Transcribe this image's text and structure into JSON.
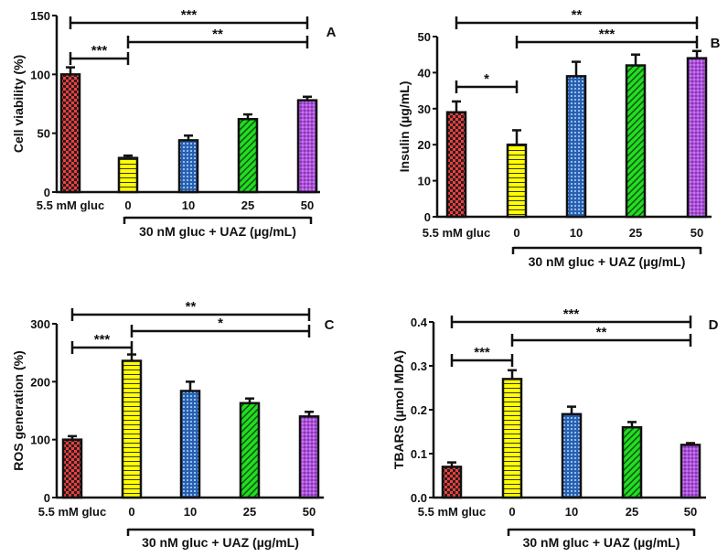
{
  "chart_data": [
    {
      "type": "bar",
      "panel_letter": "A",
      "ylabel": "Cell viability (%)",
      "categories": [
        "5.5 mM gluc",
        "0",
        "10",
        "25",
        "50"
      ],
      "group_label": "30 nM gluc + UAZ (µg/mL)",
      "values": [
        100,
        29,
        44,
        62,
        78
      ],
      "errors": [
        6,
        2,
        4,
        4,
        3
      ],
      "ylim": [
        0,
        150
      ],
      "yticks": [
        0,
        50,
        100,
        150
      ],
      "ytick_labels": [
        "0",
        "50",
        "100",
        "150"
      ],
      "significance": [
        {
          "from": 0,
          "to": 4,
          "label": "***"
        },
        {
          "from": 1,
          "to": 4,
          "label": "**"
        },
        {
          "from": 0,
          "to": 1,
          "label": "***"
        }
      ]
    },
    {
      "type": "bar",
      "panel_letter": "B",
      "ylabel": "Insulin (µg/mL)",
      "categories": [
        "5.5 mM gluc",
        "0",
        "10",
        "25",
        "50"
      ],
      "group_label": "30 nM gluc + UAZ (µg/mL)",
      "values": [
        29,
        20,
        39,
        42,
        44
      ],
      "errors": [
        3,
        4,
        4,
        3,
        2
      ],
      "ylim": [
        0,
        50
      ],
      "yticks": [
        0,
        10,
        20,
        30,
        40,
        50
      ],
      "ytick_labels": [
        "0",
        "10",
        "20",
        "30",
        "40",
        "50"
      ],
      "significance": [
        {
          "from": 0,
          "to": 4,
          "label": "**"
        },
        {
          "from": 1,
          "to": 4,
          "label": "***"
        },
        {
          "from": 0,
          "to": 1,
          "label": "*"
        }
      ]
    },
    {
      "type": "bar",
      "panel_letter": "C",
      "ylabel": "ROS generation (%)",
      "categories": [
        "5.5 mM gluc",
        "0",
        "10",
        "25",
        "50"
      ],
      "group_label": "30 nM gluc + UAZ (µg/mL)",
      "values": [
        100,
        236,
        184,
        163,
        140
      ],
      "errors": [
        6,
        11,
        16,
        8,
        8
      ],
      "ylim": [
        0,
        300
      ],
      "yticks": [
        0,
        100,
        200,
        300
      ],
      "ytick_labels": [
        "0",
        "100",
        "200",
        "300"
      ],
      "significance": [
        {
          "from": 0,
          "to": 4,
          "label": "**"
        },
        {
          "from": 1,
          "to": 4,
          "label": "*"
        },
        {
          "from": 0,
          "to": 1,
          "label": "***"
        }
      ]
    },
    {
      "type": "bar",
      "panel_letter": "D",
      "ylabel": "TBARS (µmol MDA)",
      "categories": [
        "5.5 mM gluc",
        "0",
        "10",
        "25",
        "50"
      ],
      "group_label": "30 nM gluc + UAZ (µg/mL)",
      "values": [
        0.07,
        0.27,
        0.19,
        0.16,
        0.12
      ],
      "errors": [
        0.01,
        0.02,
        0.017,
        0.012,
        0.004
      ],
      "ylim": [
        0,
        0.4
      ],
      "yticks": [
        0,
        0.1,
        0.2,
        0.3,
        0.4
      ],
      "ytick_labels": [
        "0.0",
        "0.1",
        "0.2",
        "0.3",
        "0.4"
      ],
      "significance": [
        {
          "from": 0,
          "to": 4,
          "label": "***"
        },
        {
          "from": 1,
          "to": 4,
          "label": "**"
        },
        {
          "from": 0,
          "to": 1,
          "label": "***"
        }
      ]
    }
  ],
  "colors": {
    "bars": [
      "#ff3b3b",
      "#ffff00",
      "#3a7fd0",
      "#22dd22",
      "#b050e0"
    ],
    "axis": "#111111"
  }
}
